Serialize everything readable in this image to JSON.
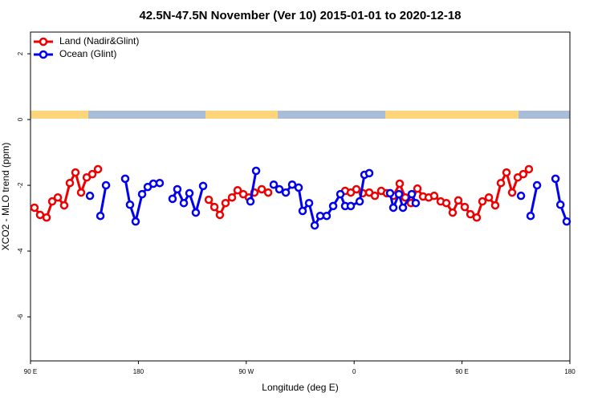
{
  "chart_data": {
    "type": "line",
    "title": "42.5N-47.5N November (Ver 10)   2015-01-01 to 2020-12-18",
    "x_label": "Longitude (deg E)",
    "y_label": "XCO2 - MLO trend (ppm)",
    "xlim": [
      90,
      540
    ],
    "ylim": [
      -7.34,
      2.66
    ],
    "xticks": [
      {
        "value": 90,
        "label": "90 E"
      },
      {
        "value": 180,
        "label": "180"
      },
      {
        "value": 270,
        "label": "90 W"
      },
      {
        "value": 360,
        "label": "0"
      },
      {
        "value": 450,
        "label": "90 E"
      },
      {
        "value": 540,
        "label": "180"
      }
    ],
    "yticks": [
      -6,
      -4,
      -2,
      0,
      2
    ],
    "legend": "top-left",
    "series": [
      {
        "name": "Land (Nadir&Glint)",
        "color": "#ee0000",
        "x": [
          93.3,
          98.0,
          103.4,
          108.1,
          112.8,
          118.1,
          122.8,
          127.5,
          132.2,
          136.9,
          141.6,
          146.3,
          null,
          238.7,
          243.4,
          248.0,
          252.7,
          258.1,
          262.8,
          267.5,
          272.2,
          276.8,
          282.9,
          288.3,
          null,
          352.5,
          357.2,
          361.9,
          367.2,
          372.6,
          377.3,
          382.6,
          387.3,
          392.7,
          398.0,
          402.7,
          407.4,
          412.8,
          417.5,
          422.2,
          426.8,
          432.2,
          436.9,
          442.2,
          446.9,
          452.3,
          457.0,
          462.3,
          467.0,
          472.4,
          477.7,
          482.4,
          487.1,
          491.8,
          496.5,
          501.1,
          505.8
        ],
        "values": [
          -2.68,
          -2.9,
          -2.98,
          -2.49,
          -2.37,
          -2.61,
          -1.93,
          -1.61,
          -2.22,
          -1.76,
          -1.66,
          -1.51,
          null,
          -2.44,
          -2.66,
          -2.9,
          -2.54,
          -2.37,
          -2.15,
          -2.27,
          -2.37,
          -2.22,
          -2.12,
          -2.22,
          null,
          -2.17,
          -2.22,
          -2.12,
          -2.24,
          -2.22,
          -2.32,
          -2.17,
          -2.24,
          -2.32,
          -1.95,
          -2.37,
          -2.54,
          -2.1,
          -2.34,
          -2.37,
          -2.32,
          -2.49,
          -2.54,
          -2.83,
          -2.46,
          -2.66,
          -2.88,
          -2.98,
          -2.49,
          -2.37,
          -2.61,
          -1.93,
          -1.61,
          -2.22,
          -1.76,
          -1.66,
          -1.51
        ]
      },
      {
        "name": "Ocean (Glint)",
        "color": "#0000ee",
        "x": [
          139.6,
          null,
          148.3,
          153.0,
          null,
          169.0,
          173.0,
          177.7,
          183.1,
          187.8,
          192.5,
          197.8,
          null,
          208.5,
          212.5,
          217.9,
          222.6,
          227.9,
          234.0,
          null,
          273.5,
          278.2,
          null,
          292.9,
          297.6,
          303.0,
          308.3,
          313.7,
          317.0,
          322.4,
          327.1,
          331.7,
          337.1,
          342.5,
          348.5,
          352.5,
          357.2,
          364.6,
          368.6,
          372.6,
          null,
          390.0,
          392.7,
          397.4,
          400.7,
          408.1,
          411.4,
          null,
          499.2,
          null,
          507.2,
          512.6,
          null,
          528.0,
          532.1,
          537.3
        ],
        "values": [
          -2.32,
          null,
          -2.93,
          -2.0,
          null,
          -1.8,
          -2.59,
          -3.1,
          -2.27,
          -2.05,
          -1.95,
          -1.93,
          null,
          -2.41,
          -2.12,
          -2.54,
          -2.24,
          -2.83,
          -2.02,
          null,
          -2.49,
          -1.56,
          null,
          -1.98,
          -2.12,
          -2.22,
          -1.98,
          -2.07,
          -2.78,
          -2.54,
          -3.22,
          -2.93,
          -2.93,
          -2.63,
          -2.27,
          -2.63,
          -2.63,
          -2.49,
          -1.68,
          -1.63,
          null,
          -2.24,
          -2.68,
          -2.27,
          -2.68,
          -2.27,
          -2.54,
          null,
          -2.32,
          null,
          -2.93,
          -2.0,
          null,
          -1.8,
          -2.59,
          -3.1
        ]
      }
    ]
  }
}
